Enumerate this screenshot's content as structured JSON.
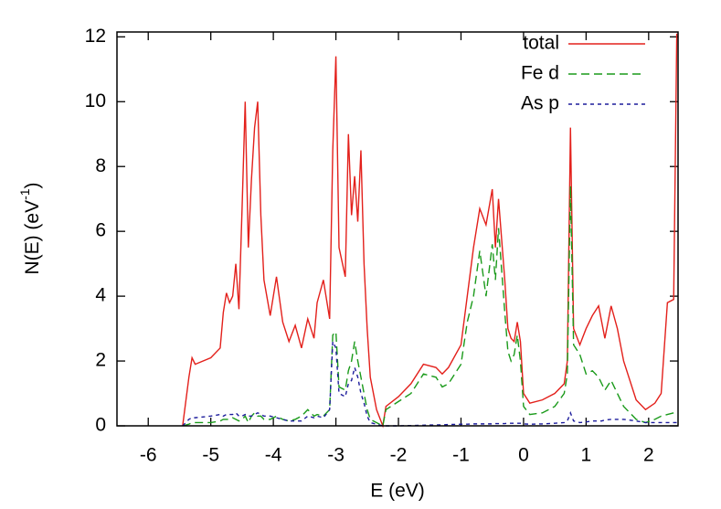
{
  "chart_data": {
    "type": "line",
    "x_label": "E (eV)",
    "y_label": {
      "base": "N(E) (eV",
      "sup": "-1",
      "close": ")"
    },
    "xlim": [
      -6.5,
      2.47
    ],
    "ylim": [
      0,
      12.15
    ],
    "xticks": [
      -6,
      -5,
      -4,
      -3,
      -2,
      -1,
      0,
      1,
      2
    ],
    "yticks": [
      0,
      2,
      4,
      6,
      8,
      10,
      12
    ],
    "legend": "top-right",
    "x": [
      -5.45,
      -5.35,
      -5.3,
      -5.25,
      -5.0,
      -4.85,
      -4.8,
      -4.75,
      -4.7,
      -4.65,
      -4.6,
      -4.55,
      -4.5,
      -4.45,
      -4.4,
      -4.35,
      -4.3,
      -4.25,
      -4.2,
      -4.15,
      -4.05,
      -3.95,
      -3.85,
      -3.75,
      -3.65,
      -3.55,
      -3.45,
      -3.35,
      -3.3,
      -3.2,
      -3.1,
      -3.05,
      -3.0,
      -2.95,
      -2.85,
      -2.8,
      -2.75,
      -2.7,
      -2.65,
      -2.6,
      -2.55,
      -2.5,
      -2.45,
      -2.35,
      -2.25,
      -2.2,
      -2.0,
      -1.8,
      -1.6,
      -1.4,
      -1.3,
      -1.2,
      -1.0,
      -0.9,
      -0.8,
      -0.7,
      -0.6,
      -0.5,
      -0.45,
      -0.4,
      -0.3,
      -0.25,
      -0.2,
      -0.15,
      -0.1,
      -0.05,
      0.0,
      0.1,
      0.3,
      0.5,
      0.65,
      0.7,
      0.75,
      0.8,
      0.9,
      1.0,
      1.1,
      1.2,
      1.25,
      1.3,
      1.4,
      1.5,
      1.6,
      1.8,
      1.95,
      2.1,
      2.2,
      2.3,
      2.4,
      2.45
    ],
    "series": [
      {
        "name": "total",
        "color": "#e3201b",
        "dash": "none",
        "values": [
          0,
          1.5,
          2.1,
          1.9,
          2.1,
          2.4,
          3.5,
          4.1,
          3.8,
          4.0,
          5.0,
          3.6,
          6.7,
          10.0,
          5.5,
          7.6,
          9.2,
          10.0,
          6.5,
          4.5,
          3.4,
          4.6,
          3.2,
          2.6,
          3.1,
          2.4,
          3.3,
          2.7,
          3.8,
          4.5,
          3.3,
          8.5,
          11.4,
          5.5,
          4.6,
          9.0,
          6.5,
          7.7,
          6.3,
          8.5,
          5.0,
          3.0,
          1.5,
          0.5,
          0,
          0.6,
          0.9,
          1.3,
          1.9,
          1.8,
          1.6,
          1.8,
          2.5,
          4.0,
          5.5,
          6.7,
          6.2,
          7.3,
          5.5,
          7.0,
          4.5,
          3.0,
          2.7,
          2.6,
          3.2,
          2.6,
          1.0,
          0.7,
          0.8,
          1.0,
          1.3,
          2.0,
          9.2,
          3.0,
          2.5,
          3.0,
          3.4,
          3.7,
          3.2,
          2.7,
          3.7,
          3.0,
          2.0,
          0.8,
          0.5,
          0.7,
          1.0,
          3.8,
          3.9,
          12.1
        ]
      },
      {
        "name": "Fe d",
        "color": "#1a9a1a",
        "dash": "9,5",
        "values": [
          0,
          0.05,
          0.1,
          0.1,
          0.1,
          0.15,
          0.2,
          0.2,
          0.2,
          0.25,
          0.2,
          0.15,
          0.2,
          0.3,
          0.1,
          0.3,
          0.4,
          0.3,
          0.3,
          0.2,
          0.2,
          0.3,
          0.2,
          0.15,
          0.2,
          0.3,
          0.5,
          0.3,
          0.35,
          0.3,
          0.5,
          2.8,
          2.9,
          1.2,
          1.1,
          1.7,
          2.0,
          2.6,
          2.0,
          1.5,
          1.0,
          0.5,
          0.2,
          0.1,
          0,
          0.5,
          0.75,
          1.0,
          1.6,
          1.5,
          1.2,
          1.3,
          1.9,
          3.2,
          4.0,
          5.4,
          4.0,
          5.6,
          4.5,
          6.1,
          3.5,
          2.3,
          2.0,
          2.2,
          2.8,
          2.0,
          0.6,
          0.35,
          0.4,
          0.6,
          1.0,
          1.6,
          7.4,
          2.5,
          2.2,
          1.6,
          1.7,
          1.5,
          1.3,
          1.1,
          1.4,
          1.0,
          0.6,
          0.2,
          0.1,
          0.2,
          0.3,
          0.35,
          0.4,
          0.5
        ]
      },
      {
        "name": "As p",
        "color": "#1c1c9c",
        "dash": "4,4",
        "values": [
          0,
          0.2,
          0.25,
          0.25,
          0.3,
          0.35,
          0.3,
          0.35,
          0.35,
          0.35,
          0.4,
          0.3,
          0.3,
          0.35,
          0.3,
          0.3,
          0.35,
          0.4,
          0.35,
          0.3,
          0.3,
          0.25,
          0.2,
          0.15,
          0.15,
          0.15,
          0.3,
          0.25,
          0.3,
          0.25,
          0.5,
          2.6,
          2.4,
          1.0,
          0.9,
          1.3,
          1.4,
          1.8,
          1.5,
          1.0,
          0.7,
          0.3,
          0.1,
          0.05,
          0,
          0,
          0,
          0.01,
          0.02,
          0.03,
          0.03,
          0.04,
          0.05,
          0.05,
          0.06,
          0.06,
          0.06,
          0.06,
          0.07,
          0.07,
          0.07,
          0.08,
          0.08,
          0.08,
          0.08,
          0.08,
          0.06,
          0.05,
          0.06,
          0.08,
          0.1,
          0.15,
          0.4,
          0.15,
          0.1,
          0.12,
          0.15,
          0.15,
          0.15,
          0.18,
          0.2,
          0.2,
          0.2,
          0.15,
          0.1,
          0.1,
          0.1,
          0.1,
          0.1,
          0.1
        ]
      }
    ]
  }
}
